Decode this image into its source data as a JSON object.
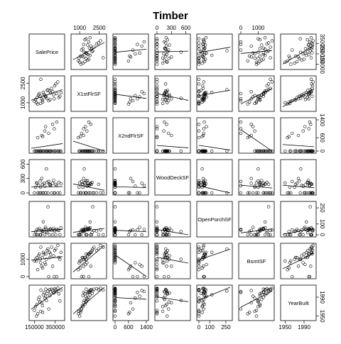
{
  "chart_data": {
    "type": "scatter",
    "subtype": "scatterplot-matrix",
    "title": "Timber",
    "variables": [
      "SalePrice",
      "X1stFlrSF",
      "X2ndFlrSF",
      "WoodDeckSF",
      "OpenPorchSF",
      "BsmtSF",
      "YearBuilt"
    ],
    "ranges": [
      [
        120000,
        420000
      ],
      [
        500,
        2900
      ],
      [
        0,
        1400
      ],
      [
        0,
        650
      ],
      [
        0,
        290
      ],
      [
        0,
        1800
      ],
      [
        1945,
        2011
      ]
    ],
    "ticks": {
      "top": [
        [],
        [
          "1000",
          "2500"
        ],
        [],
        [
          "0",
          "300",
          "600"
        ],
        [],
        [
          "0",
          "1000"
        ],
        []
      ],
      "right": [
        [],
        [],
        [
          "150000",
          "250000",
          "350000"
        ],
        [],
        [],
        [],
        []
      ],
      "bottom": [
        [
          "150000",
          "350000"
        ],
        [],
        [
          "0",
          "600",
          "1400"
        ],
        [],
        [
          "0",
          "100",
          "250"
        ],
        [],
        [
          "1950",
          "1990"
        ]
      ],
      "left": [
        [],
        [
          "1000",
          "2500"
        ],
        [],
        [
          "0",
          "300",
          "600"
        ],
        [],
        [
          "0",
          "1000"
        ],
        []
      ],
      "right_axis": [
        [
          "150000",
          "250000",
          "350000"
        ],
        [],
        [
          "0",
          "600",
          "1400"
        ],
        [],
        [
          "0",
          "100",
          "250"
        ],
        [],
        [
          "1950",
          "1990"
        ]
      ]
    },
    "tick_values": {
      "SalePrice": [
        150000,
        250000,
        350000
      ],
      "X1stFlrSF": [
        1000,
        2500
      ],
      "X2ndFlrSF": [
        0,
        600,
        1400
      ],
      "WoodDeckSF": [
        0,
        300,
        600
      ],
      "OpenPorchSF": [
        0,
        100,
        250
      ],
      "BsmtSF": [
        0,
        1000
      ],
      "YearBuilt": [
        1950,
        1990
      ]
    },
    "observations": {
      "SalePrice": [
        150000,
        160000,
        175000,
        182000,
        190000,
        198000,
        205000,
        212000,
        220000,
        228000,
        235000,
        242000,
        250000,
        258000,
        265000,
        272000,
        280000,
        288000,
        295000,
        305000,
        315000,
        325000,
        335000,
        345000,
        355000,
        365000,
        375000,
        385000,
        395000,
        405000,
        230000,
        210000,
        300000,
        340000,
        170000,
        260000
      ],
      "X1stFlrSF": [
        1100,
        1250,
        1400,
        900,
        1600,
        1700,
        1500,
        2800,
        1300,
        1200,
        1800,
        1650,
        1550,
        1450,
        1350,
        1950,
        2000,
        1150,
        1900,
        1750,
        2100,
        1850,
        1600,
        2300,
        2450,
        1700,
        2600,
        1400,
        1500,
        1800,
        1050,
        950,
        1250,
        1300,
        1000,
        1500
      ],
      "X2ndFlrSF": [
        0,
        0,
        0,
        600,
        0,
        0,
        0,
        0,
        700,
        0,
        0,
        0,
        900,
        1100,
        0,
        0,
        0,
        800,
        0,
        0,
        0,
        1200,
        0,
        0,
        0,
        1300,
        0,
        0,
        0,
        0,
        650,
        0,
        0,
        1000,
        0,
        0
      ],
      "WoodDeckSF": [
        0,
        120,
        200,
        0,
        160,
        0,
        250,
        0,
        300,
        180,
        0,
        200,
        140,
        0,
        500,
        220,
        0,
        240,
        180,
        160,
        0,
        200,
        260,
        0,
        180,
        150,
        0,
        220,
        0,
        190,
        0,
        120,
        170,
        0,
        210,
        0
      ],
      "OpenPorchSF": [
        0,
        30,
        50,
        0,
        45,
        60,
        0,
        0,
        40,
        35,
        120,
        50,
        0,
        70,
        30,
        20,
        260,
        45,
        0,
        55,
        40,
        0,
        60,
        35,
        0,
        50,
        45,
        40,
        0,
        65,
        30,
        0,
        50,
        45,
        0,
        55
      ],
      "BsmtSF": [
        900,
        1000,
        1100,
        400,
        1200,
        1300,
        1000,
        1700,
        600,
        1100,
        1400,
        1300,
        800,
        700,
        1000,
        1500,
        1600,
        0,
        1400,
        1300,
        1700,
        600,
        1200,
        1500,
        1600,
        0,
        1800,
        1100,
        1000,
        1400,
        500,
        800,
        1100,
        0,
        900,
        1300
      ],
      "YearBuilt": [
        1962,
        1970,
        1975,
        1955,
        1985,
        1990,
        1980,
        2005,
        1978,
        1972,
        1995,
        2000,
        1988,
        1992,
        1983,
        1998,
        2003,
        1965,
        2006,
        2001,
        2007,
        2004,
        1999,
        2008,
        2006,
        2002,
        2009,
        1997,
        1982,
        2005,
        1958,
        1960,
        1993,
        2000,
        1950,
        2007
      ]
    },
    "regression_lines": true,
    "grid": false,
    "legend": "none"
  }
}
